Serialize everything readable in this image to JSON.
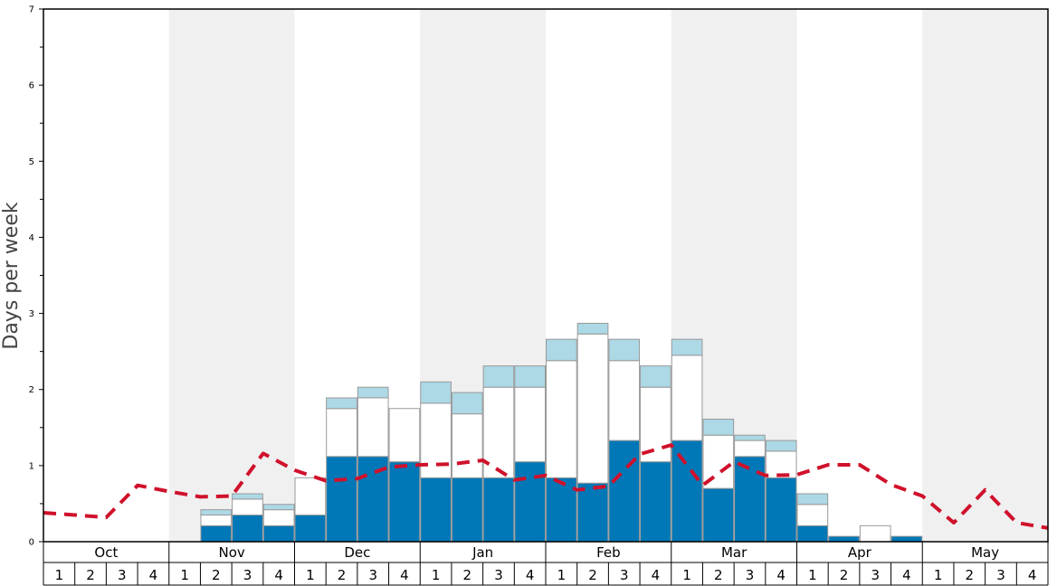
{
  "chart_data": {
    "type": "bar",
    "ylabel": "Days per week",
    "ylim": [
      0,
      7
    ],
    "y_ticks": [
      "0",
      "1",
      "2",
      "3",
      "4",
      "5",
      "6",
      "7"
    ],
    "months": [
      "Oct",
      "Nov",
      "Dec",
      "Jan",
      "Feb",
      "Mar",
      "Apr",
      "May"
    ],
    "weeks": [
      "1",
      "2",
      "3",
      "4"
    ],
    "colors": {
      "dark": "#0077b6",
      "white": "#ffffff",
      "light": "#add8e6",
      "line": "#d0112b",
      "band": "#f0f0f0"
    },
    "series": [
      {
        "key": "dark",
        "values": [
          0,
          0,
          0,
          0,
          0,
          0.21,
          0.35,
          0.21,
          0.35,
          1.12,
          1.12,
          1.05,
          0.84,
          0.84,
          0.84,
          1.05,
          0.84,
          0.77,
          1.33,
          1.05,
          1.33,
          0.7,
          1.12,
          0.84,
          0.21,
          0.07,
          0,
          0.07,
          0,
          0,
          0,
          0
        ]
      },
      {
        "key": "white",
        "values": [
          0,
          0,
          0,
          0,
          0,
          0.14,
          0.21,
          0.21,
          0.49,
          0.63,
          0.77,
          0.7,
          0.98,
          0.84,
          1.19,
          0.98,
          1.54,
          1.96,
          1.05,
          0.98,
          1.12,
          0.7,
          0.21,
          0.35,
          0.28,
          0,
          0.21,
          0,
          0,
          0,
          0,
          0
        ]
      },
      {
        "key": "light",
        "values": [
          0,
          0,
          0,
          0,
          0,
          0.07,
          0.07,
          0.07,
          0,
          0.14,
          0.14,
          0,
          0.28,
          0.28,
          0.28,
          0.28,
          0.28,
          0.14,
          0.28,
          0.28,
          0.21,
          0.21,
          0.07,
          0.14,
          0.14,
          0,
          0,
          0,
          0,
          0,
          0,
          0
        ]
      }
    ],
    "line": [
      0.38,
      0.35,
      0.32,
      0.74,
      0.66,
      0.59,
      0.6,
      1.16,
      0.94,
      0.8,
      0.83,
      0.98,
      1.01,
      1.02,
      1.07,
      0.81,
      0.87,
      0.68,
      0.73,
      1.15,
      1.27,
      0.74,
      1.05,
      0.87,
      0.88,
      1.01,
      1.01,
      0.75,
      0.6,
      0.25,
      0.68,
      0.25,
      0.18
    ]
  }
}
